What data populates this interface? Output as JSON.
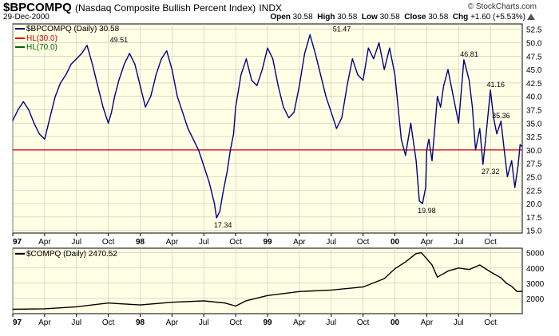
{
  "header": {
    "symbol": "$BPCOMPQ",
    "symbol_name": "(Nasdaq Composite Bullish Percent Index)",
    "exchange": "INDX",
    "date": "29-Dec-2000",
    "credit": "© StockCharts.com",
    "open_label": "Open",
    "open": "30.58",
    "high_label": "High",
    "high": "30.58",
    "low_label": "Low",
    "low": "30.58",
    "close_label": "Close",
    "close": "30.58",
    "chg_label": "Chg",
    "chg": "+1.60 (+5.53%)"
  },
  "legend": {
    "main": "$BPCOMPQ (Daily) 30.58",
    "hl30": "HL(30.0)",
    "hl70": "HL(70.0)",
    "lower": "$COMPQ (Daily) 2470.52"
  },
  "colors": {
    "panel_bg": "#ffffe6",
    "main_line": "#000080",
    "hline": "#cc0000",
    "lower_line": "#000000",
    "grid": "#c8c8b4"
  },
  "chart_data": [
    {
      "type": "line",
      "title": "$BPCOMPQ (Nasdaq Composite Bullish Percent Index)",
      "y_ticks": [
        15.0,
        17.5,
        20.0,
        22.5,
        25.0,
        27.5,
        30.0,
        32.5,
        35.0,
        37.5,
        40.0,
        42.5,
        45.0,
        47.5,
        50.0,
        52.5
      ],
      "ylim": [
        14.5,
        53.5
      ],
      "x_ticks": [
        "97",
        "Apr",
        "Jul",
        "Oct",
        "98",
        "Apr",
        "Jul",
        "Oct",
        "99",
        "Apr",
        "Jul",
        "Oct",
        "00",
        "Apr",
        "Jul",
        "Oct"
      ],
      "x_tick_months": [
        0,
        3,
        6,
        9,
        12,
        15,
        18,
        21,
        24,
        27,
        30,
        33,
        36,
        39,
        42,
        45
      ],
      "xlim_months": [
        0,
        48
      ],
      "hline": 30.0,
      "series": [
        {
          "name": "$BPCOMPQ",
          "x_months": [
            0,
            0.5,
            1,
            1.5,
            2,
            2.5,
            3,
            3.5,
            4,
            4.5,
            5,
            5.5,
            6,
            6.5,
            7,
            7.5,
            8,
            8.5,
            9,
            9.3,
            9.6,
            10,
            10.5,
            11,
            11.5,
            12,
            12.5,
            13,
            13.5,
            14,
            14.5,
            15,
            15.5,
            16,
            16.5,
            17,
            17.5,
            18,
            18.5,
            19,
            19.2,
            19.5,
            19.8,
            20,
            20.2,
            20.5,
            20.8,
            21,
            21.5,
            22,
            22.5,
            23,
            23.5,
            24,
            24.5,
            25,
            25.5,
            26,
            26.5,
            27,
            27.5,
            28,
            28.5,
            29,
            29.5,
            30,
            30.5,
            31,
            31.5,
            32,
            32.5,
            33,
            33.5,
            34,
            34.5,
            35,
            35.5,
            36,
            36.3,
            36.6,
            37,
            37.5,
            38,
            38.3,
            38.6,
            38.9,
            39,
            39.2,
            39.5,
            39.8,
            40,
            40.3,
            40.6,
            41,
            41.5,
            42,
            42.5,
            43,
            43.3,
            43.6,
            44,
            44.3,
            44.6,
            45,
            45.3,
            45.6,
            46,
            46.3,
            46.6,
            47,
            47.3,
            47.6,
            47.8,
            48
          ],
          "values": [
            35.5,
            37.5,
            39.0,
            37.5,
            35.0,
            33.0,
            32.0,
            36.0,
            40.0,
            42.5,
            44.0,
            46.0,
            47.0,
            48.0,
            49.51,
            46.0,
            42.0,
            38.0,
            35.0,
            37.0,
            40.0,
            43.0,
            46.0,
            48.0,
            46.0,
            42.0,
            38.0,
            40.0,
            44.0,
            47.0,
            48.5,
            45.0,
            40.0,
            37.0,
            34.0,
            32.0,
            30.0,
            27.0,
            24.0,
            20.0,
            17.34,
            18.5,
            22.0,
            24.0,
            26.0,
            30.0,
            33.0,
            38.0,
            44.0,
            47.0,
            43.0,
            42.0,
            45.0,
            49.0,
            47.0,
            42.0,
            38.0,
            36.0,
            37.0,
            42.0,
            48.0,
            51.47,
            48.0,
            44.0,
            40.0,
            37.0,
            34.0,
            36.0,
            42.0,
            47.0,
            44.0,
            43.0,
            49.0,
            47.0,
            50.0,
            45.0,
            49.0,
            44.0,
            38.0,
            32.0,
            29.0,
            35.0,
            28.0,
            20.5,
            19.98,
            23.0,
            30.0,
            32.0,
            28.0,
            35.0,
            40.0,
            38.0,
            42.0,
            45.0,
            40.0,
            35.0,
            46.81,
            43.0,
            38.0,
            30.0,
            34.0,
            27.32,
            33.0,
            41.16,
            36.0,
            33.0,
            35.36,
            30.0,
            25.0,
            28.0,
            23.0,
            27.0,
            31.0,
            30.58
          ],
          "annotations": [
            {
              "x_month": 10.0,
              "y": 49.51,
              "label": "49.51"
            },
            {
              "x_month": 19.8,
              "y": 17.34,
              "label": "17.34"
            },
            {
              "x_month": 31.0,
              "y": 51.47,
              "label": "51.47"
            },
            {
              "x_month": 39.0,
              "y": 19.98,
              "label": "19.98"
            },
            {
              "x_month": 43.0,
              "y": 46.81,
              "label": "46.81"
            },
            {
              "x_month": 45.5,
              "y": 41.16,
              "label": "41.16"
            },
            {
              "x_month": 46.0,
              "y": 35.36,
              "label": "35.36"
            },
            {
              "x_month": 45.0,
              "y": 27.32,
              "label": "27.32"
            }
          ]
        }
      ]
    },
    {
      "type": "line",
      "title": "$COMPQ (Daily) 2470.52",
      "y_ticks": [
        2000,
        3000,
        4000,
        5000
      ],
      "ylim": [
        1000,
        5300
      ],
      "x_ticks": [
        "97",
        "Apr",
        "Jul",
        "Oct",
        "98",
        "Apr",
        "Jul",
        "Oct",
        "99",
        "Apr",
        "Jul",
        "Oct",
        "00",
        "Apr",
        "Jul",
        "Oct"
      ],
      "x_tick_months": [
        0,
        3,
        6,
        9,
        12,
        15,
        18,
        21,
        24,
        27,
        30,
        33,
        36,
        39,
        42,
        45
      ],
      "xlim_months": [
        0,
        48
      ],
      "series": [
        {
          "name": "$COMPQ",
          "x_months": [
            0,
            3,
            6,
            9,
            12,
            15,
            18,
            20,
            21,
            22,
            24,
            27,
            30,
            33,
            35,
            36,
            37,
            38,
            38.5,
            39,
            39.5,
            40,
            41,
            42,
            43,
            44,
            45,
            46,
            46.5,
            47,
            47.5,
            48
          ],
          "values": [
            1290,
            1320,
            1450,
            1700,
            1570,
            1750,
            1840,
            1700,
            1500,
            1850,
            2190,
            2450,
            2550,
            2750,
            3300,
            3950,
            4400,
            4950,
            5000,
            4600,
            4200,
            3400,
            3800,
            4000,
            3900,
            4200,
            3750,
            3350,
            3000,
            2800,
            2450,
            2470
          ]
        }
      ]
    }
  ]
}
